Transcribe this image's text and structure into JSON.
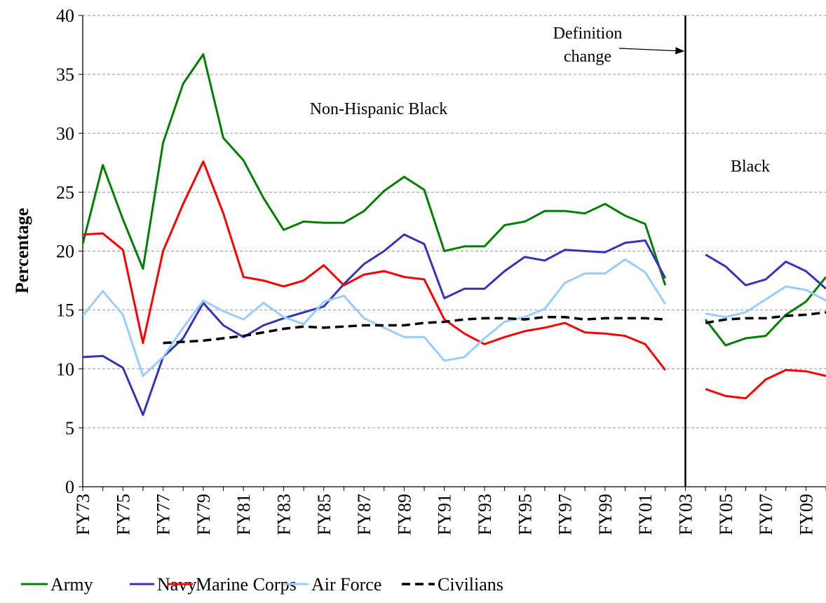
{
  "chart_data": {
    "type": "line",
    "y_label": "Percentage",
    "annotations": {
      "left": "Non-Hispanic Black",
      "right": "Black",
      "definition": [
        "Definition",
        "change"
      ]
    },
    "vline": "FY03",
    "categories": [
      "FY73",
      null,
      "FY75",
      null,
      "FY77",
      null,
      "FY79",
      null,
      "FY81",
      null,
      "FY83",
      null,
      "FY85",
      null,
      "FY87",
      null,
      "FY89",
      null,
      "FY91",
      null,
      "FY93",
      null,
      "FY95",
      null,
      "FY97",
      null,
      "FY99",
      null,
      "FY01",
      null,
      "FY03",
      null,
      "FY05",
      null,
      "FY07",
      null,
      "FY09",
      null
    ],
    "ylim": [
      0,
      40
    ],
    "yticks": [
      0,
      5,
      10,
      15,
      20,
      25,
      30,
      35,
      40
    ],
    "grid": true,
    "legend": "bottom",
    "series": [
      {
        "name": "Army",
        "color": "#008000",
        "dash": false,
        "values": [
          20.6,
          27.3,
          22.7,
          18.5,
          29.2,
          34.2,
          36.7,
          29.6,
          27.7,
          24.5,
          21.8,
          22.5,
          22.4,
          22.4,
          23.4,
          25.1,
          26.3,
          25.2,
          20.0,
          20.4,
          20.4,
          22.2,
          22.5,
          23.4,
          23.4,
          23.2,
          24.0,
          23.0,
          22.3,
          17.1,
          null,
          14.2,
          12.0,
          12.6,
          12.8,
          14.6,
          15.7,
          17.8
        ]
      },
      {
        "name": "Navy",
        "color": "#3333bb",
        "dash": false,
        "values": [
          11.0,
          11.1,
          10.1,
          6.1,
          11.0,
          12.6,
          15.6,
          13.7,
          12.7,
          13.7,
          14.3,
          14.8,
          15.3,
          17.2,
          18.9,
          20.0,
          21.4,
          20.6,
          16.0,
          16.8,
          16.8,
          18.3,
          19.5,
          19.2,
          20.1,
          20.0,
          19.9,
          20.7,
          20.9,
          17.7,
          null,
          19.7,
          18.7,
          17.1,
          17.6,
          19.1,
          18.3,
          16.8
        ]
      },
      {
        "name": "Marine Corps",
        "color": "#ff0000",
        "dash": false,
        "values": [
          21.4,
          21.5,
          20.1,
          12.2,
          20.0,
          24.0,
          27.6,
          23.2,
          17.8,
          17.5,
          17.0,
          17.5,
          18.8,
          17.1,
          18.0,
          18.3,
          17.8,
          17.6,
          14.2,
          13.0,
          12.1,
          12.7,
          13.2,
          13.5,
          13.9,
          13.1,
          13.0,
          12.8,
          12.1,
          9.9,
          null,
          8.3,
          7.7,
          7.5,
          9.1,
          9.9,
          9.8,
          9.4
        ]
      },
      {
        "name": "Air Force",
        "color": "#99ccff",
        "dash": false,
        "values": [
          14.5,
          16.6,
          14.6,
          9.4,
          11.0,
          13.5,
          15.8,
          14.9,
          14.2,
          15.6,
          14.4,
          13.8,
          15.7,
          16.2,
          14.3,
          13.5,
          12.7,
          12.7,
          10.7,
          11.0,
          12.6,
          14.0,
          14.4,
          15.1,
          17.3,
          18.1,
          18.1,
          19.3,
          18.2,
          15.5,
          null,
          14.7,
          14.4,
          14.8,
          15.9,
          17.0,
          16.7,
          15.8
        ]
      },
      {
        "name": "Civilians",
        "color": "#000000",
        "dash": true,
        "values": [
          null,
          null,
          null,
          null,
          12.2,
          12.3,
          12.4,
          12.6,
          12.8,
          13.1,
          13.4,
          13.6,
          13.5,
          13.6,
          13.7,
          13.7,
          13.7,
          13.9,
          14.0,
          14.2,
          14.3,
          14.3,
          14.2,
          14.4,
          14.4,
          14.2,
          14.3,
          14.3,
          14.3,
          14.2,
          null,
          13.9,
          14.2,
          14.3,
          14.3,
          14.5,
          14.6,
          14.8
        ]
      }
    ]
  }
}
